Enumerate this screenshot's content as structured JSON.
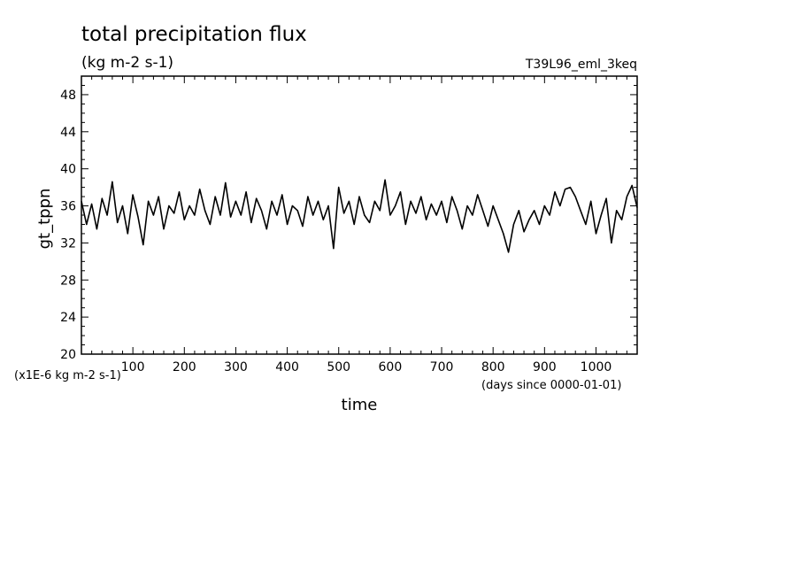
{
  "chart_data": {
    "type": "line",
    "title": "total precipitation flux",
    "subtitle": "(kg m-2 s-1)",
    "run_name": "T39L96_eml_3keq",
    "xlabel": "time",
    "ylabel": "gt_tppn",
    "y_scale_note": "(x1E-6 kg m-2 s-1)",
    "x_unit_note": "(days since 0000-01-01)",
    "xlim": [
      0,
      1080
    ],
    "ylim": [
      20,
      50
    ],
    "x_ticks": [
      100,
      200,
      300,
      400,
      500,
      600,
      700,
      800,
      900,
      1000
    ],
    "y_ticks": [
      20,
      24,
      28,
      32,
      36,
      40,
      44,
      48
    ],
    "grid": false,
    "line_color": "#000000",
    "series": [
      {
        "x": [
          0,
          10,
          20,
          30,
          40,
          50,
          60,
          70,
          80,
          90,
          100,
          110,
          120,
          130,
          140,
          150,
          160,
          170,
          180,
          190,
          200,
          210,
          220,
          230,
          240,
          250,
          260,
          270,
          280,
          290,
          300,
          310,
          320,
          330,
          340,
          350,
          360,
          370,
          380,
          390,
          400,
          410,
          420,
          430,
          440,
          450,
          460,
          470,
          480,
          490,
          500,
          510,
          520,
          530,
          540,
          550,
          560,
          570,
          580,
          590,
          600,
          610,
          620,
          630,
          640,
          650,
          660,
          670,
          680,
          690,
          700,
          710,
          720,
          730,
          740,
          750,
          760,
          770,
          780,
          790,
          800,
          810,
          820,
          830,
          840,
          850,
          860,
          870,
          880,
          890,
          900,
          910,
          920,
          930,
          940,
          950,
          960,
          970,
          980,
          990,
          1000,
          1010,
          1020,
          1030,
          1040,
          1050,
          1060,
          1070,
          1080
        ],
        "values": [
          36.5,
          34.0,
          36.2,
          33.5,
          36.8,
          35.0,
          38.6,
          34.2,
          36.0,
          33.0,
          37.2,
          34.8,
          31.8,
          36.5,
          35.0,
          37.0,
          33.5,
          36.0,
          35.2,
          37.5,
          34.5,
          36.0,
          35.0,
          37.8,
          35.5,
          34.0,
          37.0,
          35.0,
          38.5,
          34.8,
          36.5,
          35.0,
          37.5,
          34.2,
          36.8,
          35.5,
          33.5,
          36.5,
          35.0,
          37.2,
          34.0,
          36.0,
          35.5,
          33.8,
          37.0,
          35.0,
          36.5,
          34.5,
          36.0,
          31.4,
          38.0,
          35.2,
          36.5,
          34.0,
          37.0,
          35.0,
          34.2,
          36.5,
          35.5,
          38.8,
          35.0,
          36.0,
          37.5,
          34.0,
          36.5,
          35.2,
          37.0,
          34.5,
          36.2,
          35.0,
          36.5,
          34.2,
          37.0,
          35.5,
          33.5,
          36.0,
          35.0,
          37.2,
          35.5,
          33.8,
          36.0,
          34.5,
          33.0,
          31.0,
          34.0,
          35.5,
          33.2,
          34.5,
          35.5,
          34.0,
          36.0,
          35.0,
          37.5,
          36.0,
          37.8,
          38.0,
          37.0,
          35.5,
          34.0,
          36.5,
          33.0,
          35.0,
          36.8,
          32.0,
          35.5,
          34.5,
          37.0,
          38.2,
          35.8
        ]
      }
    ]
  }
}
